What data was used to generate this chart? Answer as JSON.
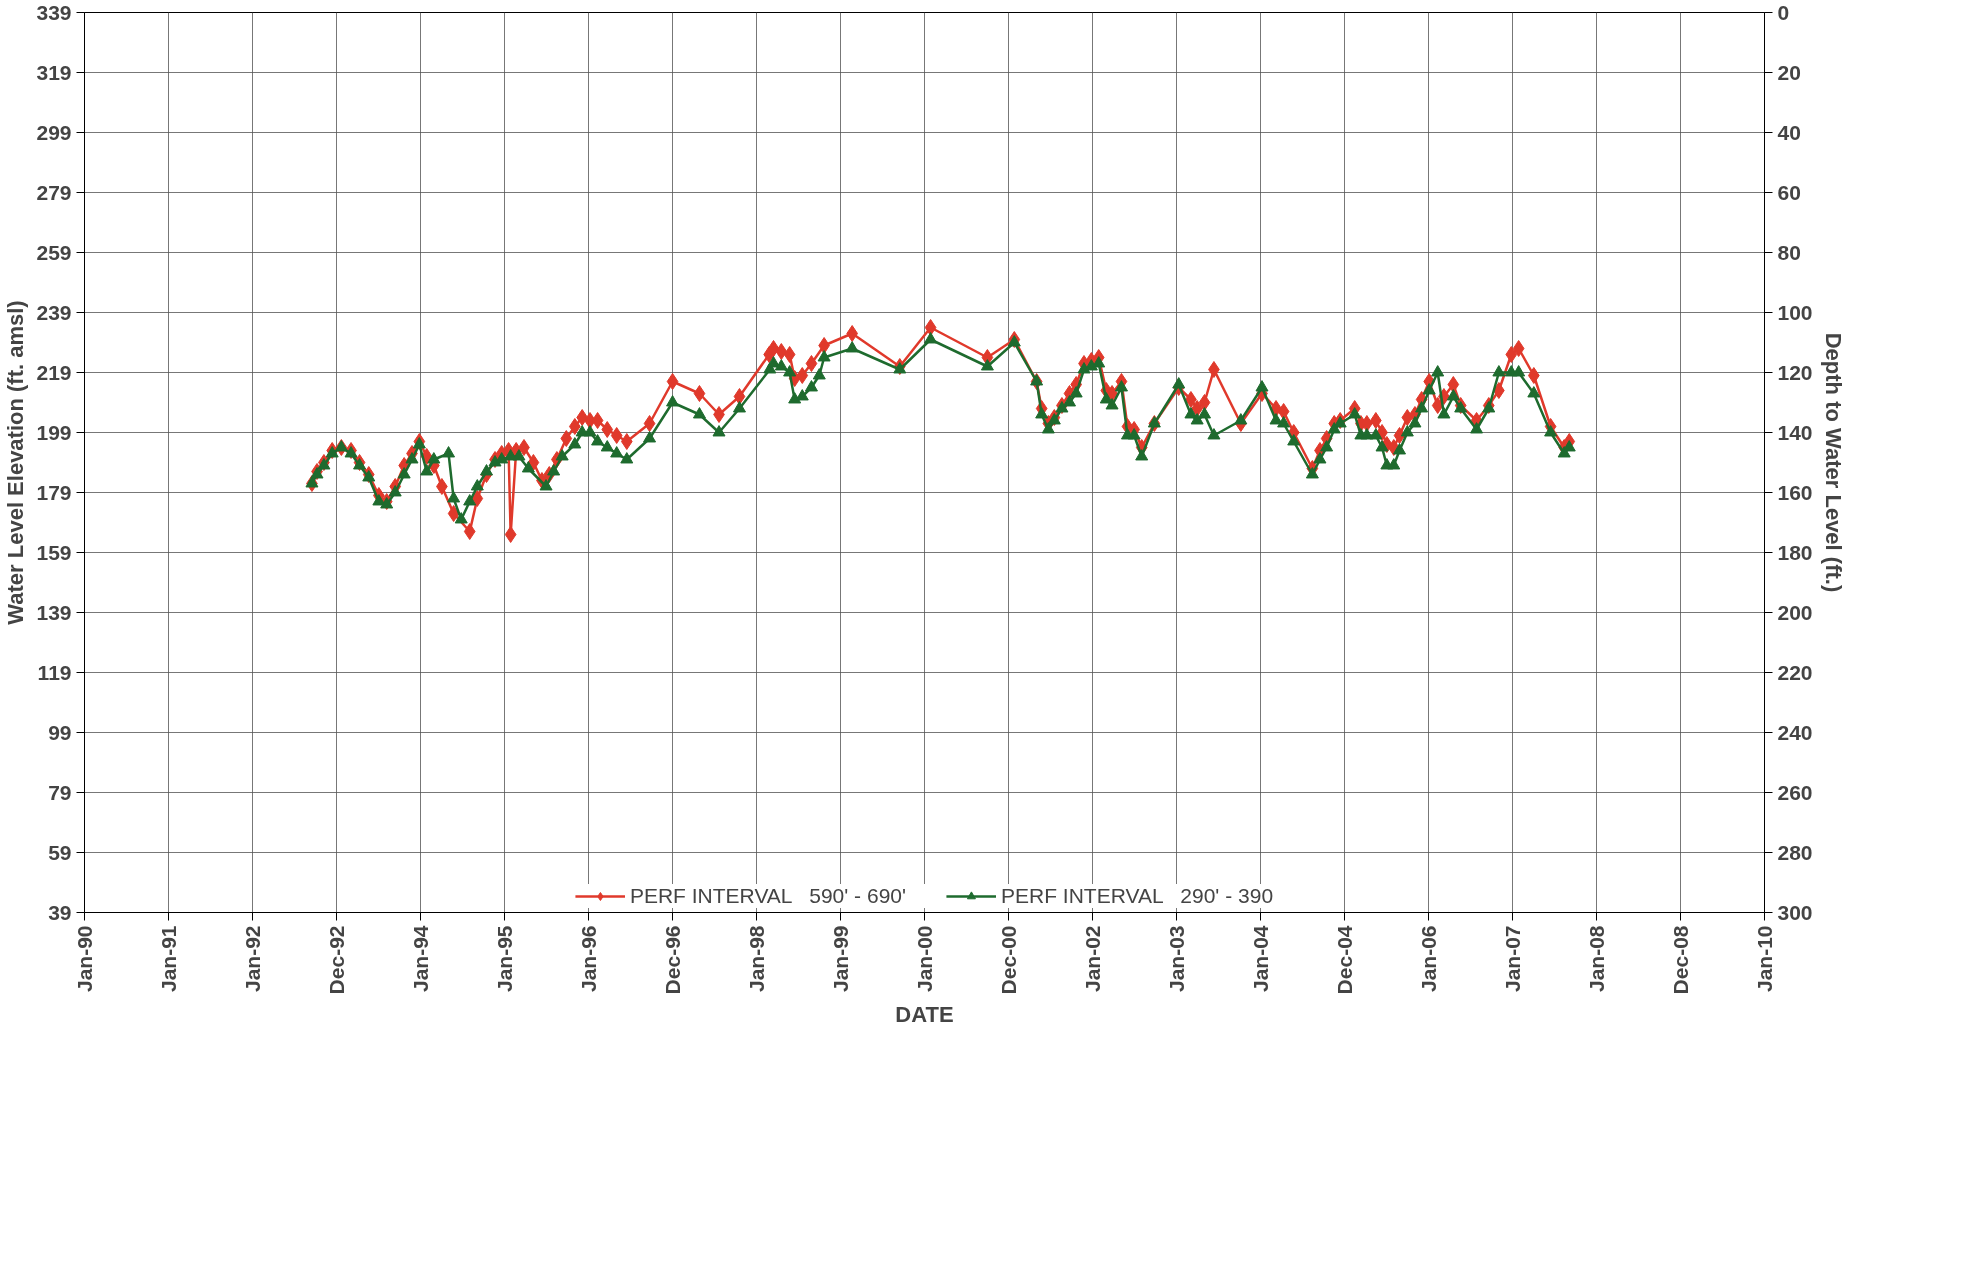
{
  "chart_data": {
    "type": "line",
    "xlabel": "DATE",
    "ylabel": "Water Level Elevation (ft. amsl)",
    "y2label": "Depth to Water Level (ft.)",
    "xlim": [
      "1990-01-01",
      "2010-01-01"
    ],
    "xticks": [
      {
        "value": "1990-01-01",
        "label": "Jan-90"
      },
      {
        "value": "1991-01-01",
        "label": "Jan-91"
      },
      {
        "value": "1992-01-01",
        "label": "Jan-92"
      },
      {
        "value": "1992-12-31",
        "label": "Dec-92"
      },
      {
        "value": "1994-01-01",
        "label": "Jan-94"
      },
      {
        "value": "1995-01-01",
        "label": "Jan-95"
      },
      {
        "value": "1996-01-01",
        "label": "Jan-96"
      },
      {
        "value": "1996-12-31",
        "label": "Dec-96"
      },
      {
        "value": "1998-01-01",
        "label": "Jan-98"
      },
      {
        "value": "1999-01-01",
        "label": "Jan-99"
      },
      {
        "value": "2000-01-01",
        "label": "Jan-00"
      },
      {
        "value": "2000-12-31",
        "label": "Dec-00"
      },
      {
        "value": "2002-01-01",
        "label": "Jan-02"
      },
      {
        "value": "2003-01-01",
        "label": "Jan-03"
      },
      {
        "value": "2004-01-01",
        "label": "Jan-04"
      },
      {
        "value": "2004-12-31",
        "label": "Dec-04"
      },
      {
        "value": "2006-01-01",
        "label": "Jan-06"
      },
      {
        "value": "2007-01-01",
        "label": "Jan-07"
      },
      {
        "value": "2008-01-01",
        "label": "Jan-08"
      },
      {
        "value": "2008-12-31",
        "label": "Dec-08"
      },
      {
        "value": "2010-01-01",
        "label": "Jan-10"
      }
    ],
    "ylim": [
      39,
      339
    ],
    "yticks": [
      39,
      59,
      79,
      99,
      119,
      139,
      159,
      179,
      199,
      219,
      239,
      259,
      279,
      299,
      319,
      339
    ],
    "y2lim": [
      300,
      0
    ],
    "y2ticks": [
      0,
      20,
      40,
      60,
      80,
      100,
      120,
      140,
      160,
      180,
      200,
      220,
      240,
      260,
      280,
      300
    ],
    "grid": true,
    "legend": "bottom",
    "line_style": "solid",
    "series": [
      {
        "name": "PERF INTERVAL   590' - 690'",
        "color": "#e0392b",
        "marker": "diamond",
        "x": [
          "1992-09-16",
          "1992-10-08",
          "1992-11-07",
          "1992-12-13",
          "1993-01-22",
          "1993-03-05",
          "1993-04-11",
          "1993-05-21",
          "1993-07-04",
          "1993-08-07",
          "1993-09-13",
          "1993-10-22",
          "1993-11-25",
          "1993-12-27",
          "1994-01-28",
          "1994-02-28",
          "1994-04-04",
          "1994-05-25",
          "1994-08-03",
          "1994-09-05",
          "1994-10-15",
          "1994-11-21",
          "1994-12-20",
          "1995-01-19",
          "1995-01-28",
          "1995-02-21",
          "1995-03-27",
          "1995-05-07",
          "1995-06-13",
          "1995-07-15",
          "1995-08-17",
          "1995-09-27",
          "1995-11-03",
          "1995-12-05",
          "1996-01-08",
          "1996-02-10",
          "1996-03-23",
          "1996-05-03",
          "1996-06-16",
          "1996-09-23",
          "1997-01-01",
          "1997-04-28",
          "1997-07-22",
          "1997-10-19",
          "1998-02-25",
          "1998-03-16",
          "1998-04-19",
          "1998-05-25",
          "1998-06-16",
          "1998-07-19",
          "1998-08-28",
          "1998-10-22",
          "1999-02-21",
          "1999-09-16",
          "2000-01-28",
          "2000-10-01",
          "2001-01-26",
          "2001-05-03",
          "2001-05-25",
          "2001-06-23",
          "2001-07-19",
          "2001-08-21",
          "2001-09-23",
          "2001-10-22",
          "2001-11-25",
          "2001-12-27",
          "2002-01-28",
          "2002-03-02",
          "2002-03-27",
          "2002-05-07",
          "2002-06-02",
          "2002-07-01",
          "2002-08-03",
          "2002-09-27",
          "2003-01-11",
          "2003-03-05",
          "2003-04-01",
          "2003-05-03",
          "2003-06-13",
          "2003-10-08",
          "2004-01-08",
          "2004-03-09",
          "2004-04-11",
          "2004-05-25",
          "2004-08-14",
          "2004-09-16",
          "2004-10-15",
          "2004-11-17",
          "2004-12-13",
          "2005-02-14",
          "2005-03-13",
          "2005-04-08",
          "2005-05-17",
          "2005-06-13",
          "2005-07-04",
          "2005-08-03",
          "2005-08-28",
          "2005-10-01",
          "2005-11-03",
          "2005-12-02",
          "2006-01-04",
          "2006-02-10",
          "2006-03-09",
          "2006-04-19",
          "2006-05-21",
          "2006-07-29",
          "2006-09-20",
          "2006-11-03",
          "2006-12-27",
          "2007-01-28",
          "2007-04-04",
          "2007-06-16",
          "2007-08-14",
          "2007-09-05"
        ],
        "values": [
          182,
          186,
          189,
          193,
          194,
          193,
          189,
          185,
          178,
          176,
          181,
          188,
          192,
          196,
          191,
          188,
          181,
          172,
          166,
          177,
          185,
          190,
          192,
          193,
          165,
          193,
          194,
          189,
          183,
          185,
          190,
          197,
          201,
          204,
          203,
          203,
          200,
          198,
          196,
          202,
          216,
          212,
          205,
          211,
          225,
          227,
          226,
          225,
          217,
          218,
          222,
          228,
          232,
          221,
          234,
          224,
          230,
          216,
          207,
          202,
          204,
          208,
          212,
          215,
          222,
          223,
          224,
          213,
          212,
          216,
          201,
          200,
          194,
          202,
          214,
          210,
          207,
          209,
          220,
          202,
          212,
          207,
          206,
          199,
          187,
          193,
          197,
          202,
          203,
          207,
          202,
          202,
          203,
          199,
          195,
          194,
          198,
          204,
          205,
          210,
          216,
          208,
          211,
          215,
          208,
          203,
          208,
          213,
          225,
          227,
          218,
          201,
          194,
          196
        ]
      },
      {
        "name": "PERF INTERVAL   290' - 390",
        "color": "#1e6b2e",
        "marker": "triangle",
        "x": [
          "1992-09-16",
          "1992-10-08",
          "1992-11-07",
          "1992-12-13",
          "1993-01-22",
          "1993-03-05",
          "1993-04-11",
          "1993-05-21",
          "1993-07-04",
          "1993-08-07",
          "1993-09-13",
          "1993-10-22",
          "1993-11-25",
          "1993-12-27",
          "1994-01-28",
          "1994-02-28",
          "1994-05-03",
          "1994-05-25",
          "1994-06-27",
          "1994-08-03",
          "1994-09-05",
          "1994-10-15",
          "1994-11-21",
          "1994-12-20",
          "1995-01-28",
          "1995-03-05",
          "1995-04-15",
          "1995-07-01",
          "1995-08-03",
          "1995-09-09",
          "1995-11-03",
          "1995-12-05",
          "1996-01-08",
          "1996-02-10",
          "1996-03-23",
          "1996-05-03",
          "1996-06-16",
          "1996-09-23",
          "1997-01-01",
          "1997-04-28",
          "1997-07-22",
          "1997-10-19",
          "1998-02-28",
          "1998-03-16",
          "1998-04-19",
          "1998-05-25",
          "1998-06-16",
          "1998-07-19",
          "1998-08-28",
          "1998-10-01",
          "1998-10-22",
          "1999-02-21",
          "1999-09-16",
          "2000-01-28",
          "2000-10-01",
          "2001-01-26",
          "2001-05-03",
          "2001-05-25",
          "2001-06-23",
          "2001-07-19",
          "2001-08-21",
          "2001-09-23",
          "2001-10-22",
          "2001-11-25",
          "2001-12-27",
          "2002-01-28",
          "2002-03-02",
          "2002-03-27",
          "2002-05-07",
          "2002-06-02",
          "2002-07-01",
          "2002-08-03",
          "2002-09-27",
          "2003-01-11",
          "2003-03-05",
          "2003-04-01",
          "2003-05-03",
          "2003-06-13",
          "2003-10-08",
          "2004-01-08",
          "2004-03-09",
          "2004-04-11",
          "2004-05-25",
          "2004-08-14",
          "2004-09-16",
          "2004-10-15",
          "2004-11-17",
          "2004-12-13",
          "2005-02-14",
          "2005-03-13",
          "2005-04-08",
          "2005-05-17",
          "2005-06-13",
          "2005-07-04",
          "2005-08-03",
          "2005-08-28",
          "2005-10-01",
          "2005-11-03",
          "2005-12-02",
          "2006-01-04",
          "2006-02-10",
          "2006-03-09",
          "2006-04-19",
          "2006-05-21",
          "2006-07-29",
          "2006-09-20",
          "2006-11-03",
          "2006-12-27",
          "2007-01-28",
          "2007-04-04",
          "2007-06-16",
          "2007-08-14",
          "2007-09-05"
        ],
        "values": [
          182,
          185,
          188,
          192,
          194,
          192,
          188,
          184,
          176,
          175,
          179,
          185,
          190,
          195,
          186,
          190,
          192,
          177,
          170,
          176,
          181,
          186,
          189,
          190,
          191,
          191,
          187,
          181,
          186,
          191,
          195,
          199,
          199,
          196,
          194,
          192,
          190,
          197,
          209,
          205,
          199,
          207,
          220,
          222,
          221,
          219,
          210,
          211,
          214,
          218,
          224,
          227,
          220,
          230,
          221,
          229,
          216,
          205,
          200,
          203,
          207,
          209,
          212,
          220,
          221,
          222,
          210,
          208,
          214,
          198,
          198,
          191,
          202,
          215,
          205,
          203,
          205,
          198,
          203,
          214,
          203,
          202,
          196,
          185,
          190,
          194,
          200,
          202,
          205,
          198,
          198,
          198,
          194,
          188,
          188,
          193,
          199,
          202,
          207,
          213,
          219,
          205,
          211,
          207,
          200,
          207,
          219,
          219,
          219,
          212,
          199,
          192,
          194
        ]
      }
    ]
  }
}
